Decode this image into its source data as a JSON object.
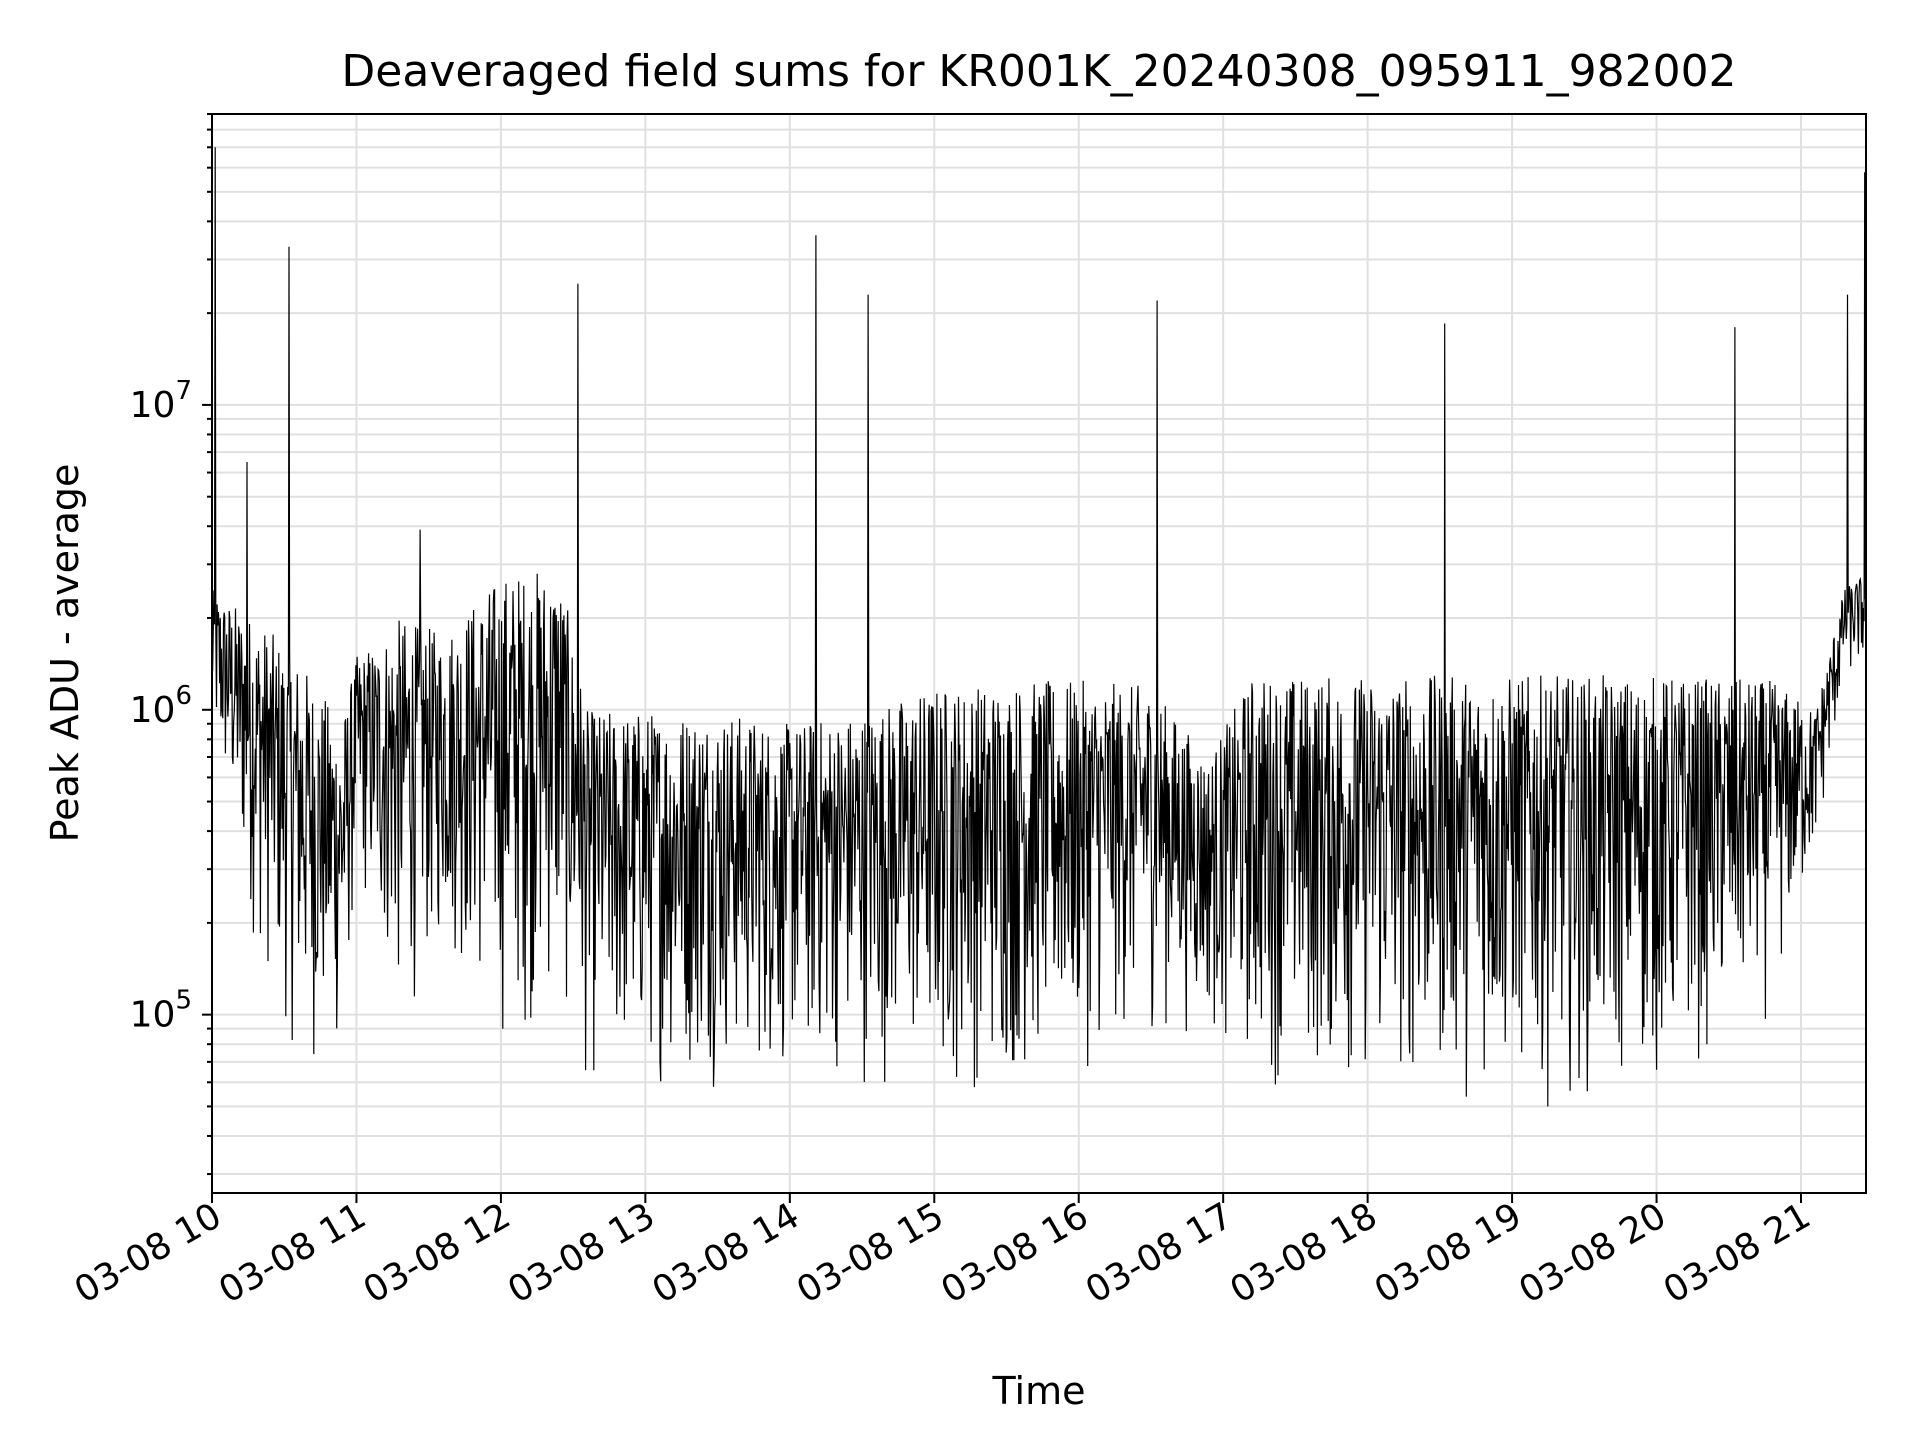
{
  "chart_data": {
    "type": "line",
    "title": "Deaveraged field sums for KR001K_20240308_095911_982002",
    "xlabel": "Time",
    "ylabel": "Peak ADU - average",
    "yscale": "log",
    "ylim": [
      26000,
      90000000
    ],
    "xlim_hours": [
      10.0,
      21.45
    ],
    "grid": true,
    "line_color": "#000000",
    "x_ticks": [
      {
        "hour": 10,
        "label": "03-08 10"
      },
      {
        "hour": 11,
        "label": "03-08 11"
      },
      {
        "hour": 12,
        "label": "03-08 12"
      },
      {
        "hour": 13,
        "label": "03-08 13"
      },
      {
        "hour": 14,
        "label": "03-08 14"
      },
      {
        "hour": 15,
        "label": "03-08 15"
      },
      {
        "hour": 16,
        "label": "03-08 16"
      },
      {
        "hour": 17,
        "label": "03-08 17"
      },
      {
        "hour": 18,
        "label": "03-08 18"
      },
      {
        "hour": 19,
        "label": "03-08 19"
      },
      {
        "hour": 20,
        "label": "03-08 20"
      },
      {
        "hour": 21,
        "label": "03-08 21"
      }
    ],
    "y_ticks": [
      {
        "exp": 5,
        "label_base": "10",
        "label_exp": "5"
      },
      {
        "exp": 6,
        "label_base": "10",
        "label_exp": "6"
      },
      {
        "exp": 7,
        "label_base": "10",
        "label_exp": "7"
      }
    ],
    "spikes": [
      {
        "hour": 10.02,
        "value": 70000000
      },
      {
        "hour": 10.24,
        "value": 6500000
      },
      {
        "hour": 10.53,
        "value": 33000000
      },
      {
        "hour": 11.44,
        "value": 3900000
      },
      {
        "hour": 12.53,
        "value": 25000000
      },
      {
        "hour": 14.18,
        "value": 36000000
      },
      {
        "hour": 14.54,
        "value": 23000000
      },
      {
        "hour": 16.54,
        "value": 22000000
      },
      {
        "hour": 18.53,
        "value": 18500000
      },
      {
        "hour": 20.54,
        "value": 18000000
      },
      {
        "hour": 21.32,
        "value": 23000000
      },
      {
        "hour": 21.44,
        "value": 58000000
      }
    ],
    "envelope": [
      {
        "hour": 10.0,
        "high": 2500000,
        "low": 700000
      },
      {
        "hour": 10.3,
        "high": 2000000,
        "low": 150000
      },
      {
        "hour": 10.6,
        "high": 1500000,
        "low": 60000
      },
      {
        "hour": 10.9,
        "high": 900000,
        "low": 60000
      },
      {
        "hour": 11.0,
        "high": 1500000,
        "low": 250000
      },
      {
        "hour": 11.3,
        "high": 2000000,
        "low": 80000
      },
      {
        "hour": 11.6,
        "high": 1800000,
        "low": 150000
      },
      {
        "hour": 12.0,
        "high": 2800000,
        "low": 70000
      },
      {
        "hour": 12.4,
        "high": 3000000,
        "low": 90000
      },
      {
        "hour": 12.6,
        "high": 1000000,
        "low": 50000
      },
      {
        "hour": 13.0,
        "high": 1000000,
        "low": 55000
      },
      {
        "hour": 13.5,
        "high": 1000000,
        "low": 55000
      },
      {
        "hour": 14.0,
        "high": 900000,
        "low": 55000
      },
      {
        "hour": 14.5,
        "high": 1000000,
        "low": 55000
      },
      {
        "hour": 15.0,
        "high": 1200000,
        "low": 50000
      },
      {
        "hour": 15.5,
        "high": 1250000,
        "low": 50000
      },
      {
        "hour": 16.0,
        "high": 1250000,
        "low": 60000
      },
      {
        "hour": 16.5,
        "high": 1200000,
        "low": 80000
      },
      {
        "hour": 16.9,
        "high": 700000,
        "low": 80000
      },
      {
        "hour": 17.2,
        "high": 1300000,
        "low": 55000
      },
      {
        "hour": 18.0,
        "high": 1300000,
        "low": 50000
      },
      {
        "hour": 19.0,
        "high": 1300000,
        "low": 48000
      },
      {
        "hour": 20.0,
        "high": 1300000,
        "low": 50000
      },
      {
        "hour": 20.8,
        "high": 1250000,
        "low": 90000
      },
      {
        "hour": 21.1,
        "high": 1000000,
        "low": 300000
      },
      {
        "hour": 21.3,
        "high": 2500000,
        "low": 1200000
      },
      {
        "hour": 21.45,
        "high": 2800000,
        "low": 1300000
      }
    ]
  }
}
